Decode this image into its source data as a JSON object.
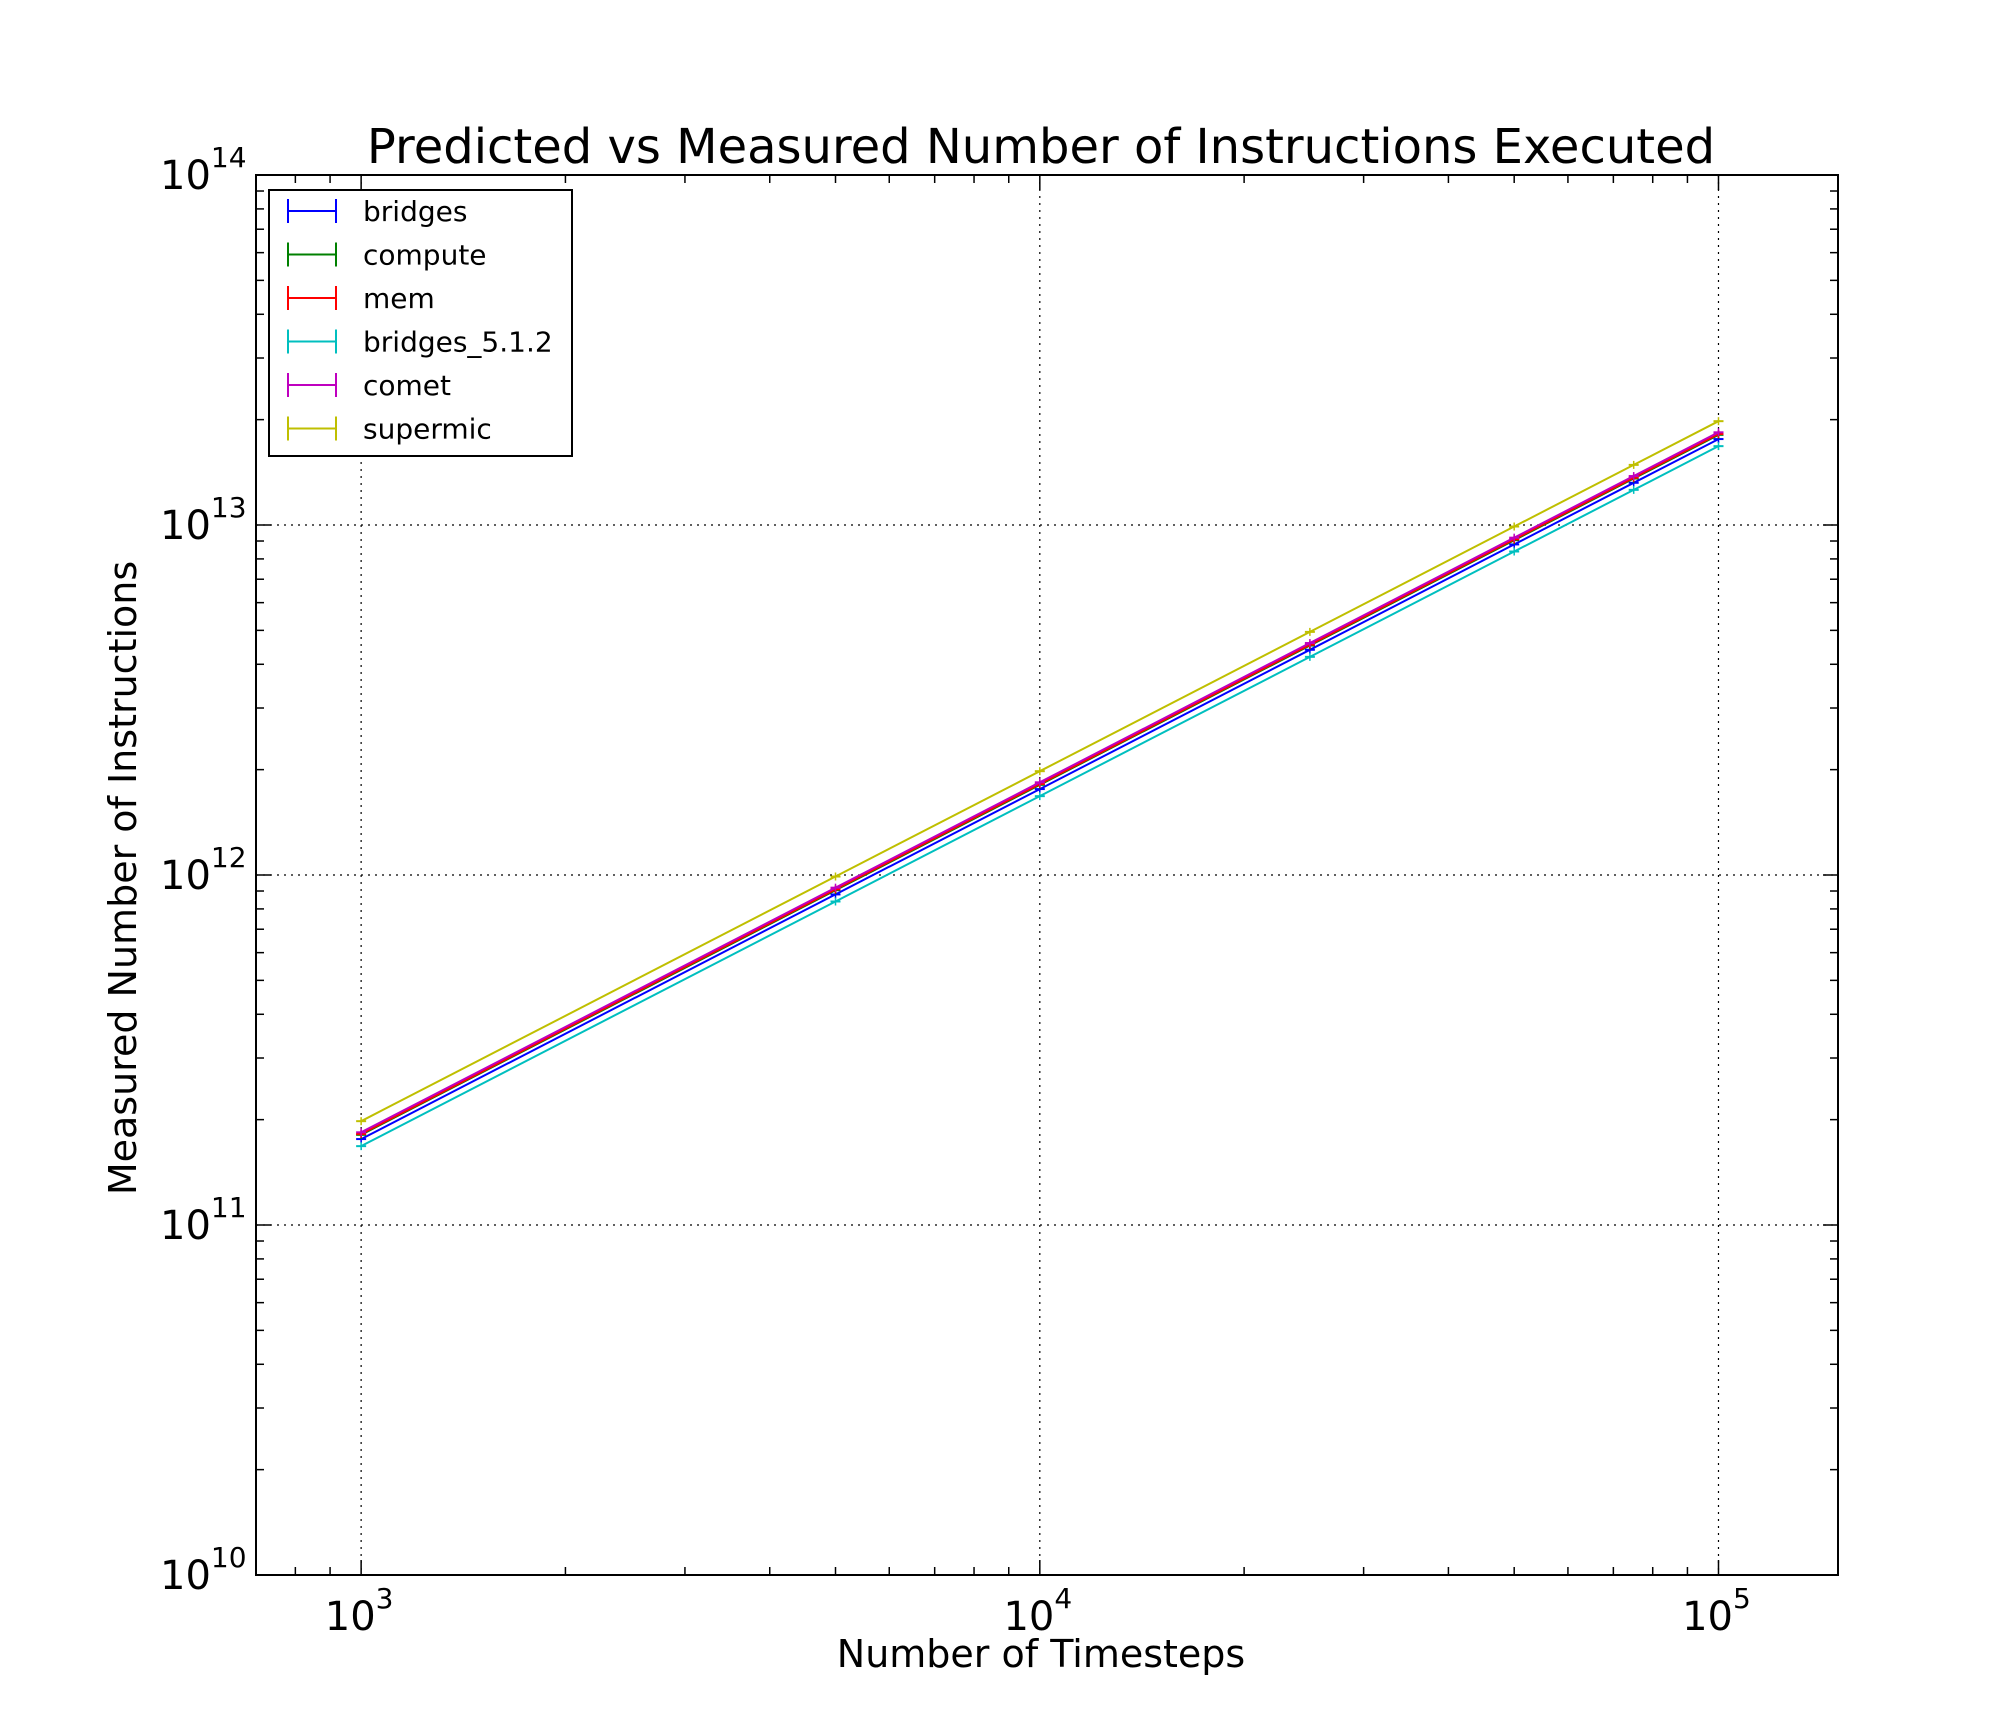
{
  "chart_data": {
    "type": "line",
    "title": "Predicted vs Measured Number of Instructions Executed",
    "xlabel": "Number of Timesteps",
    "ylabel": "Measured Number of Instructions",
    "xscale": "log",
    "yscale": "log",
    "xlim": [
      700,
      150000
    ],
    "ylim": [
      10000000000,
      100000000000000
    ],
    "grid": true,
    "legend_position": "top-left",
    "x_ticks": [
      {
        "value": 1000,
        "base": "10",
        "exp": "3"
      },
      {
        "value": 10000,
        "base": "10",
        "exp": "4"
      },
      {
        "value": 100000,
        "base": "10",
        "exp": "5"
      }
    ],
    "y_ticks": [
      {
        "value": 10000000000,
        "base": "10",
        "exp": "10"
      },
      {
        "value": 100000000000,
        "base": "10",
        "exp": "11"
      },
      {
        "value": 1000000000000,
        "base": "10",
        "exp": "12"
      },
      {
        "value": 10000000000000,
        "base": "10",
        "exp": "13"
      },
      {
        "value": 100000000000000,
        "base": "10",
        "exp": "14"
      }
    ],
    "x": [
      1000,
      5000,
      10000,
      25000,
      50000,
      75000,
      100000
    ],
    "series": [
      {
        "name": "bridges",
        "color": "#0000ff",
        "values": [
          176000000000,
          880000000000,
          1760000000000,
          4400000000000,
          8800000000000,
          13200000000000,
          17600000000000
        ]
      },
      {
        "name": "compute",
        "color": "#008000",
        "values": [
          181000000000,
          905000000000,
          1810000000000,
          4525000000000,
          9050000000000,
          13575000000000,
          18100000000000
        ]
      },
      {
        "name": "mem",
        "color": "#ff0000",
        "values": [
          182000000000,
          910000000000,
          1820000000000,
          4550000000000,
          9100000000000,
          13650000000000,
          18200000000000
        ]
      },
      {
        "name": "bridges_5.1.2",
        "color": "#00bfbf",
        "values": [
          168000000000,
          840000000000,
          1680000000000,
          4200000000000,
          8400000000000,
          12600000000000,
          16800000000000
        ]
      },
      {
        "name": "comet",
        "color": "#bf00bf",
        "values": [
          184000000000,
          920000000000,
          1840000000000,
          4600000000000,
          9200000000000,
          13800000000000,
          18400000000000
        ]
      },
      {
        "name": "supermic",
        "color": "#bfbf00",
        "values": [
          198000000000,
          990000000000,
          1980000000000,
          4950000000000,
          9900000000000,
          14850000000000,
          19800000000000
        ]
      }
    ]
  }
}
